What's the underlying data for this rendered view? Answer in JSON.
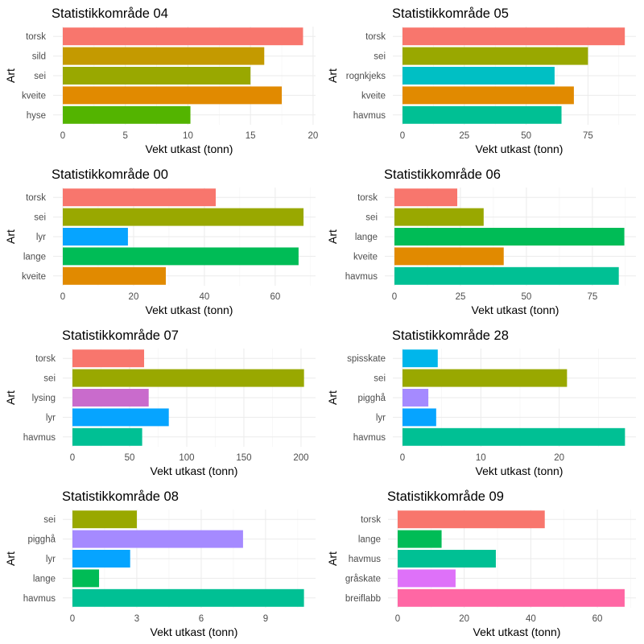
{
  "chart_data": [
    {
      "type": "bar",
      "orientation": "horizontal",
      "title": "Statistikkområde 04",
      "xlabel": "Vekt utkast (tonn)",
      "ylabel": "Art",
      "categories": [
        "torsk",
        "sild",
        "sei",
        "kveite",
        "hyse"
      ],
      "values": [
        19.2,
        16.1,
        15.0,
        17.5,
        10.2
      ],
      "colors": [
        "#F8766D",
        "#C49A00",
        "#99A800",
        "#E18A00",
        "#53B400"
      ],
      "xticks": [
        0,
        5,
        10,
        15,
        20
      ],
      "xlim": [
        0,
        20.2
      ],
      "grid": true,
      "legend": "none"
    },
    {
      "type": "bar",
      "orientation": "horizontal",
      "title": "Statistikkområde 05",
      "xlabel": "Vekt utkast (tonn)",
      "ylabel": "Art",
      "categories": [
        "torsk",
        "sei",
        "rognkjeks",
        "kveite",
        "havmus"
      ],
      "values": [
        89.9,
        75.0,
        61.5,
        69.3,
        64.3
      ],
      "colors": [
        "#F8766D",
        "#99A800",
        "#00BFC4",
        "#E18A00",
        "#00C094"
      ],
      "xticks": [
        0,
        25,
        50,
        75
      ],
      "xlim": [
        0,
        94.4
      ],
      "grid": true,
      "legend": "none"
    },
    {
      "type": "bar",
      "orientation": "horizontal",
      "title": "Statistikkområde 00",
      "xlabel": "Vekt utkast (tonn)",
      "ylabel": "Art",
      "categories": [
        "torsk",
        "sei",
        "lyr",
        "lange",
        "kveite"
      ],
      "values": [
        43.2,
        68.0,
        18.4,
        66.6,
        29.1
      ],
      "colors": [
        "#F8766D",
        "#99A800",
        "#06A4FF",
        "#00BC56",
        "#E18A00"
      ],
      "xticks": [
        0,
        20,
        40,
        60
      ],
      "xlim": [
        0,
        71.4
      ],
      "grid": true,
      "legend": "none"
    },
    {
      "type": "bar",
      "orientation": "horizontal",
      "title": "Statistikkområde 06",
      "xlabel": "Vekt utkast (tonn)",
      "ylabel": "Art",
      "categories": [
        "torsk",
        "sei",
        "lange",
        "kveite",
        "havmus"
      ],
      "values": [
        23.8,
        33.8,
        87.1,
        41.4,
        85.0
      ],
      "colors": [
        "#F8766D",
        "#99A800",
        "#00BC56",
        "#E18A00",
        "#00C094"
      ],
      "xticks": [
        0,
        25,
        50,
        75
      ],
      "xlim": [
        0,
        91.5
      ],
      "grid": true,
      "legend": "none"
    },
    {
      "type": "bar",
      "orientation": "horizontal",
      "title": "Statistikkområde 07",
      "xlabel": "Vekt utkast (tonn)",
      "ylabel": "Art",
      "categories": [
        "torsk",
        "sei",
        "lysing",
        "lyr",
        "havmus"
      ],
      "values": [
        62.7,
        202.6,
        66.7,
        84.3,
        61.0
      ],
      "colors": [
        "#F8766D",
        "#99A800",
        "#C96BCC",
        "#06A4FF",
        "#00C094"
      ],
      "xticks": [
        0,
        50,
        100,
        150,
        200
      ],
      "xlim": [
        0,
        212.7
      ],
      "grid": true,
      "legend": "none"
    },
    {
      "type": "bar",
      "orientation": "horizontal",
      "title": "Statistikkområde 28",
      "xlabel": "Vekt utkast (tonn)",
      "ylabel": "Art",
      "categories": [
        "spisskate",
        "sei",
        "pigghå",
        "lyr",
        "havmus"
      ],
      "values": [
        4.5,
        21.0,
        3.3,
        4.3,
        28.4
      ],
      "colors": [
        "#00B6EB",
        "#99A800",
        "#A58AFF",
        "#06A4FF",
        "#00C094"
      ],
      "xticks": [
        0,
        10,
        20
      ],
      "xlim": [
        0,
        29.8
      ],
      "grid": true,
      "legend": "none"
    },
    {
      "type": "bar",
      "orientation": "horizontal",
      "title": "Statistikkområde 08",
      "xlabel": "Vekt utkast (tonn)",
      "ylabel": "Art",
      "categories": [
        "sei",
        "pigghå",
        "lyr",
        "lange",
        "havmus"
      ],
      "values": [
        3.0,
        7.95,
        2.69,
        1.24,
        10.79
      ],
      "colors": [
        "#99A800",
        "#A58AFF",
        "#06A4FF",
        "#00BC56",
        "#00C094"
      ],
      "xticks": [
        0,
        3,
        6,
        9
      ],
      "xlim": [
        0,
        11.33
      ],
      "grid": true,
      "legend": "none"
    },
    {
      "type": "bar",
      "orientation": "horizontal",
      "title": "Statistikkområde 09",
      "xlabel": "Vekt utkast (tonn)",
      "ylabel": "Art",
      "categories": [
        "torsk",
        "lange",
        "havmus",
        "gråskate",
        "breiflabb"
      ],
      "values": [
        44.2,
        13.2,
        29.5,
        17.4,
        68.2
      ],
      "colors": [
        "#F8766D",
        "#00BC56",
        "#00C094",
        "#DE71F9",
        "#FF67A4"
      ],
      "xticks": [
        0,
        20,
        40,
        60
      ],
      "xlim": [
        0,
        71.6
      ],
      "grid": true,
      "legend": "none"
    }
  ]
}
